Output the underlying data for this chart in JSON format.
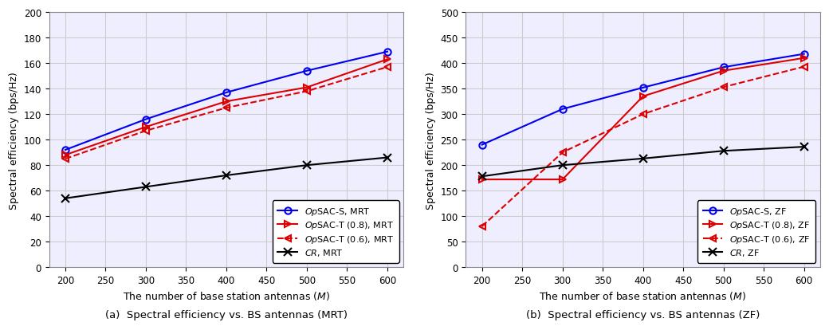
{
  "x": [
    200,
    300,
    400,
    500,
    600
  ],
  "mrt": {
    "opsac_s": [
      92,
      116,
      137,
      154,
      169
    ],
    "opsac_t08": [
      88,
      110,
      130,
      141,
      163
    ],
    "opsac_t06": [
      85,
      107,
      125,
      138,
      157
    ],
    "cr": [
      54,
      63,
      72,
      80,
      86
    ]
  },
  "zf": {
    "opsac_s": [
      240,
      310,
      352,
      392,
      418
    ],
    "opsac_t08": [
      172,
      172,
      335,
      385,
      410
    ],
    "opsac_t06": [
      80,
      225,
      300,
      353,
      393
    ],
    "cr": [
      178,
      200,
      213,
      228,
      236
    ]
  },
  "colors": {
    "blue": "#0000ee",
    "red": "#dd0000",
    "black": "#000000"
  },
  "ylim_mrt": [
    0,
    200
  ],
  "ylim_zf": [
    0,
    500
  ],
  "yticks_mrt": [
    0,
    20,
    40,
    60,
    80,
    100,
    120,
    140,
    160,
    180,
    200
  ],
  "yticks_zf": [
    0,
    50,
    100,
    150,
    200,
    250,
    300,
    350,
    400,
    450,
    500
  ],
  "xlim": [
    180,
    620
  ],
  "xticks": [
    200,
    250,
    300,
    350,
    400,
    450,
    500,
    550,
    600
  ],
  "xlabel": "The number of base station antennas ($M$)",
  "ylabel": "Spectral efficiency (bps/Hz)",
  "legend_mrt": [
    "OpSAC-S, MRT",
    "OpSAC-T (0.8), MRT",
    "OpSAC-T (0.6), MRT",
    "CR, MRT"
  ],
  "legend_zf": [
    "OpSAC-S, ZF",
    "OpSAC-T (0.8), ZF",
    "OpSAC-T (0.6), ZF",
    "CR, ZF"
  ],
  "caption_a": "(a)  Spectral efficiency vs. BS antennas (MRT)",
  "caption_b": "(b)  Spectral efficiency vs. BS antennas (ZF)",
  "background_color": "#eeeeff",
  "grid_color": "#cccccc"
}
